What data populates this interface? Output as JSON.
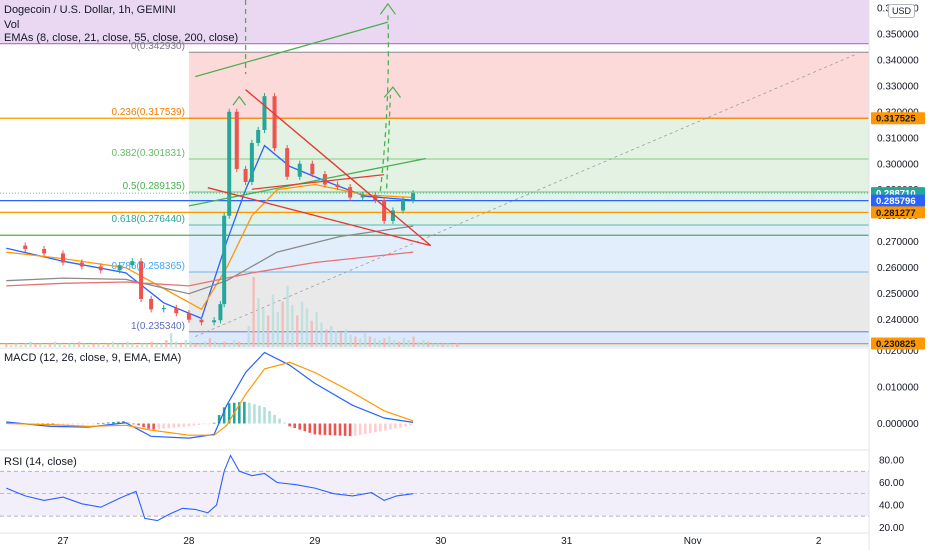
{
  "header": {
    "symbol_title": "Dogecoin / U.S. Dollar, 1h, GEMINI",
    "vol_label": "Vol",
    "emas_label": "EMAs (8, close, 21, close, 55, close, 200, close)",
    "currency": "USD"
  },
  "indicators": {
    "macd_label": "MACD (12, 26, close, 9, EMA, EMA)",
    "rsi_label": "RSI (14, close)"
  },
  "colors": {
    "green_candle": "#26a69a",
    "red_candle": "#ef5350",
    "macd_line": "#2962ff",
    "signal_line": "#ff9800",
    "rsi_line": "#2962ff",
    "price_tag_blue": "#2962ff",
    "price_tag_orange": "#ff9800",
    "price_tag_green": "#26a69a"
  },
  "chart_data": [
    {
      "type": "candlestick",
      "title": "Dogecoin / U.S. Dollar, 1h, GEMINI",
      "y_unit": "USD",
      "y_scale": "linear",
      "ylim": [
        0.2295,
        0.363
      ],
      "y_ticks": [
        "0.360000",
        "0.350000",
        "0.340000",
        "0.330000",
        "0.320000",
        "0.310000",
        "0.300000",
        "0.290000",
        "0.280000",
        "0.270000",
        "0.260000",
        "0.250000",
        "0.240000",
        "0.230000"
      ],
      "x_ticks": [
        "27",
        "28",
        "29",
        "30",
        "31",
        "Nov",
        "2"
      ],
      "price_series": [
        {
          "x": 26.55,
          "y": 0.2685
        },
        {
          "x": 26.7,
          "y": 0.2672
        },
        {
          "x": 26.85,
          "y": 0.2655
        },
        {
          "x": 27.0,
          "y": 0.262
        },
        {
          "x": 27.15,
          "y": 0.2605
        },
        {
          "x": 27.3,
          "y": 0.259
        },
        {
          "x": 27.45,
          "y": 0.261
        },
        {
          "x": 27.55,
          "y": 0.2625
        },
        {
          "x": 27.62,
          "y": 0.248
        },
        {
          "x": 27.7,
          "y": 0.244
        },
        {
          "x": 27.8,
          "y": 0.2445
        },
        {
          "x": 27.9,
          "y": 0.2425
        },
        {
          "x": 28.0,
          "y": 0.24
        },
        {
          "x": 28.1,
          "y": 0.239
        },
        {
          "x": 28.2,
          "y": 0.2398
        },
        {
          "x": 28.25,
          "y": 0.246
        },
        {
          "x": 28.28,
          "y": 0.28
        },
        {
          "x": 28.32,
          "y": 0.32
        },
        {
          "x": 28.38,
          "y": 0.298
        },
        {
          "x": 28.45,
          "y": 0.293
        },
        {
          "x": 28.5,
          "y": 0.308
        },
        {
          "x": 28.55,
          "y": 0.313
        },
        {
          "x": 28.6,
          "y": 0.326
        },
        {
          "x": 28.68,
          "y": 0.306
        },
        {
          "x": 28.78,
          "y": 0.295
        },
        {
          "x": 28.88,
          "y": 0.3
        },
        {
          "x": 28.98,
          "y": 0.296
        },
        {
          "x": 29.08,
          "y": 0.292
        },
        {
          "x": 29.18,
          "y": 0.291
        },
        {
          "x": 29.28,
          "y": 0.287
        },
        {
          "x": 29.38,
          "y": 0.288
        },
        {
          "x": 29.48,
          "y": 0.286
        },
        {
          "x": 29.55,
          "y": 0.278
        },
        {
          "x": 29.62,
          "y": 0.282
        },
        {
          "x": 29.7,
          "y": 0.286
        },
        {
          "x": 29.78,
          "y": 0.2887
        }
      ],
      "ema_lines": [
        {
          "name": "EMA 8",
          "color": "#2962ff",
          "points": [
            {
              "x": 26.55,
              "y": 0.2675
            },
            {
              "x": 27.0,
              "y": 0.2625
            },
            {
              "x": 27.5,
              "y": 0.258
            },
            {
              "x": 27.8,
              "y": 0.2465
            },
            {
              "x": 28.1,
              "y": 0.2405
            },
            {
              "x": 28.3,
              "y": 0.27
            },
            {
              "x": 28.45,
              "y": 0.29
            },
            {
              "x": 28.6,
              "y": 0.307
            },
            {
              "x": 28.8,
              "y": 0.299
            },
            {
              "x": 29.1,
              "y": 0.293
            },
            {
              "x": 29.4,
              "y": 0.2875
            },
            {
              "x": 29.78,
              "y": 0.286
            }
          ]
        },
        {
          "name": "EMA 21",
          "color": "#ff9800",
          "points": [
            {
              "x": 26.55,
              "y": 0.266
            },
            {
              "x": 27.0,
              "y": 0.2635
            },
            {
              "x": 27.5,
              "y": 0.26
            },
            {
              "x": 27.8,
              "y": 0.252
            },
            {
              "x": 28.1,
              "y": 0.244
            },
            {
              "x": 28.3,
              "y": 0.26
            },
            {
              "x": 28.5,
              "y": 0.28
            },
            {
              "x": 28.7,
              "y": 0.29
            },
            {
              "x": 29.0,
              "y": 0.292
            },
            {
              "x": 29.4,
              "y": 0.288
            },
            {
              "x": 29.78,
              "y": 0.287
            }
          ]
        },
        {
          "name": "EMA 55",
          "color": "#8b8b8b",
          "points": [
            {
              "x": 26.55,
              "y": 0.255
            },
            {
              "x": 27.0,
              "y": 0.256
            },
            {
              "x": 27.5,
              "y": 0.2555
            },
            {
              "x": 28.0,
              "y": 0.25
            },
            {
              "x": 28.3,
              "y": 0.255
            },
            {
              "x": 28.7,
              "y": 0.266
            },
            {
              "x": 29.2,
              "y": 0.272
            },
            {
              "x": 29.78,
              "y": 0.276
            }
          ]
        },
        {
          "name": "EMA 200",
          "color": "#e57373",
          "points": [
            {
              "x": 26.55,
              "y": 0.253
            },
            {
              "x": 27.0,
              "y": 0.254
            },
            {
              "x": 27.5,
              "y": 0.2545
            },
            {
              "x": 28.0,
              "y": 0.253
            },
            {
              "x": 28.5,
              "y": 0.258
            },
            {
              "x": 29.0,
              "y": 0.262
            },
            {
              "x": 29.78,
              "y": 0.266
            }
          ]
        }
      ],
      "fib_levels": [
        {
          "label": "0(0.342930)",
          "value": 0.34293,
          "color": "#787b86",
          "fill": "#fcdada"
        },
        {
          "label": "0.236(0.317539)",
          "value": 0.317539,
          "color": "#f57c00",
          "fill": "#e3f2e3"
        },
        {
          "label": "0.382(0.301831)",
          "value": 0.301831,
          "color": "#66bb6a",
          "fill": "#e3f2e3"
        },
        {
          "label": "0.5(0.289135)",
          "value": 0.289135,
          "color": "#4caf50",
          "fill": "#e0f2ec"
        },
        {
          "label": "0.618(0.276440)",
          "value": 0.27644,
          "color": "#26a69a",
          "fill": "#e3eefc"
        },
        {
          "label": "0.786(0.258365)",
          "value": 0.258365,
          "color": "#42a5f5",
          "fill": "#e9e9e9"
        },
        {
          "label": "1(0.235340)",
          "value": 0.23534,
          "color": "#5c6bc0",
          "fill": "#dce8fb"
        }
      ],
      "horizontal_levels": [
        {
          "value": 0.3462,
          "color": "#ba68c8"
        },
        {
          "value": 0.3175,
          "color": "#ff9800"
        },
        {
          "value": 0.2858,
          "color": "#2962ff"
        },
        {
          "value": 0.2813,
          "color": "#ff9800"
        },
        {
          "value": 0.2725,
          "color": "#4caf50"
        },
        {
          "value": 0.2308,
          "color": "#ff9800"
        }
      ],
      "price_tags": [
        {
          "text": "0.317525",
          "value": 0.317525,
          "kind": "orange"
        },
        {
          "text": "0.288710",
          "value": 0.28871,
          "kind": "green"
        },
        {
          "text": "0.285796",
          "value": 0.285796,
          "kind": "blue"
        },
        {
          "text": "0.281277",
          "value": 0.281277,
          "kind": "orange"
        },
        {
          "text": "0.230825",
          "value": 0.230825,
          "kind": "orange"
        }
      ]
    },
    {
      "type": "bar",
      "name": "Volume",
      "x_start": 26.55,
      "x_step": 0.0385,
      "values": [
        2,
        1,
        2,
        1,
        2,
        3,
        2,
        2,
        1,
        2,
        3,
        2,
        1,
        2,
        2,
        3,
        2,
        1,
        2,
        2,
        1,
        2,
        3,
        2,
        2,
        3,
        2,
        1,
        2,
        2,
        3,
        2,
        2,
        4,
        8,
        3,
        2,
        4,
        3,
        2,
        2,
        3,
        5,
        3,
        2,
        3,
        2,
        4,
        3,
        2,
        12,
        40,
        28,
        22,
        18,
        30,
        20,
        26,
        35,
        24,
        18,
        26,
        22,
        15,
        20,
        14,
        10,
        12,
        9,
        8,
        10,
        7,
        6,
        5,
        8,
        6,
        5,
        4,
        5,
        6,
        4,
        3,
        5,
        4,
        6,
        3,
        4,
        3,
        2,
        2,
        2,
        2,
        1,
        2
      ]
    },
    {
      "type": "line",
      "title": "MACD (12, 26, close, 9, EMA, EMA)",
      "ylim": [
        -0.007,
        0.021
      ],
      "y_ticks": [
        "0.020000",
        "0.010000",
        "0.000000"
      ],
      "series": [
        {
          "name": "MACD",
          "points": [
            {
              "x": 26.55,
              "y": 0.0004
            },
            {
              "x": 26.9,
              "y": -0.0008
            },
            {
              "x": 27.2,
              "y": -0.001
            },
            {
              "x": 27.5,
              "y": 0.0002
            },
            {
              "x": 27.7,
              "y": -0.0035
            },
            {
              "x": 28.0,
              "y": -0.004
            },
            {
              "x": 28.2,
              "y": -0.003
            },
            {
              "x": 28.3,
              "y": 0.005
            },
            {
              "x": 28.45,
              "y": 0.014
            },
            {
              "x": 28.6,
              "y": 0.0195
            },
            {
              "x": 28.8,
              "y": 0.016
            },
            {
              "x": 29.0,
              "y": 0.011
            },
            {
              "x": 29.3,
              "y": 0.005
            },
            {
              "x": 29.55,
              "y": 0.0015
            },
            {
              "x": 29.78,
              "y": 0.0003
            }
          ]
        },
        {
          "name": "Signal",
          "points": [
            {
              "x": 26.55,
              "y": 0.0
            },
            {
              "x": 26.9,
              "y": -0.0003
            },
            {
              "x": 27.2,
              "y": -0.0008
            },
            {
              "x": 27.5,
              "y": -0.0005
            },
            {
              "x": 27.7,
              "y": -0.0018
            },
            {
              "x": 28.0,
              "y": -0.0032
            },
            {
              "x": 28.2,
              "y": -0.0032
            },
            {
              "x": 28.3,
              "y": -0.0005
            },
            {
              "x": 28.45,
              "y": 0.008
            },
            {
              "x": 28.6,
              "y": 0.015
            },
            {
              "x": 28.8,
              "y": 0.0168
            },
            {
              "x": 29.0,
              "y": 0.014
            },
            {
              "x": 29.3,
              "y": 0.0085
            },
            {
              "x": 29.55,
              "y": 0.0035
            },
            {
              "x": 29.78,
              "y": 0.0007
            }
          ]
        }
      ]
    },
    {
      "type": "line",
      "title": "RSI (14, close)",
      "ylim": [
        15,
        88
      ],
      "y_ticks": [
        "80.00",
        "60.00",
        "40.00",
        "20.00"
      ],
      "band": [
        30,
        70
      ],
      "series": [
        {
          "name": "RSI",
          "points": [
            {
              "x": 26.55,
              "y": 55
            },
            {
              "x": 26.7,
              "y": 48
            },
            {
              "x": 26.85,
              "y": 44
            },
            {
              "x": 27.0,
              "y": 47
            },
            {
              "x": 27.15,
              "y": 41
            },
            {
              "x": 27.3,
              "y": 38
            },
            {
              "x": 27.45,
              "y": 46
            },
            {
              "x": 27.58,
              "y": 52
            },
            {
              "x": 27.65,
              "y": 28
            },
            {
              "x": 27.75,
              "y": 26
            },
            {
              "x": 27.85,
              "y": 32
            },
            {
              "x": 27.95,
              "y": 37
            },
            {
              "x": 28.05,
              "y": 36
            },
            {
              "x": 28.15,
              "y": 33
            },
            {
              "x": 28.22,
              "y": 40
            },
            {
              "x": 28.28,
              "y": 70
            },
            {
              "x": 28.33,
              "y": 84
            },
            {
              "x": 28.4,
              "y": 70
            },
            {
              "x": 28.5,
              "y": 66
            },
            {
              "x": 28.6,
              "y": 68
            },
            {
              "x": 28.7,
              "y": 60
            },
            {
              "x": 28.85,
              "y": 58
            },
            {
              "x": 29.0,
              "y": 55
            },
            {
              "x": 29.15,
              "y": 50
            },
            {
              "x": 29.3,
              "y": 48
            },
            {
              "x": 29.45,
              "y": 51
            },
            {
              "x": 29.55,
              "y": 44
            },
            {
              "x": 29.65,
              "y": 48
            },
            {
              "x": 29.78,
              "y": 50
            }
          ]
        }
      ]
    }
  ]
}
